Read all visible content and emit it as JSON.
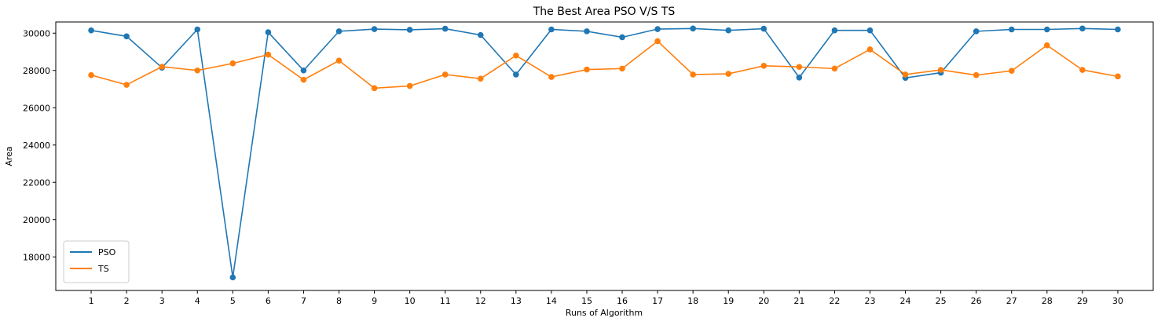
{
  "chart_data": {
    "type": "line",
    "title": "The Best Area PSO V/S TS",
    "xlabel": "Runs of Algorithm",
    "ylabel": "Area",
    "x": [
      1,
      2,
      3,
      4,
      5,
      6,
      7,
      8,
      9,
      10,
      11,
      12,
      13,
      14,
      15,
      16,
      17,
      18,
      19,
      20,
      21,
      22,
      23,
      24,
      25,
      26,
      27,
      28,
      29,
      30
    ],
    "xlim": [
      0,
      31
    ],
    "ylim": [
      16200,
      30600
    ],
    "yticks": [
      18000,
      20000,
      22000,
      24000,
      26000,
      28000,
      30000
    ],
    "grid": false,
    "legend_position": "lower-left",
    "series": [
      {
        "name": "PSO",
        "color": "#1f77b4",
        "values": [
          30150,
          29830,
          28150,
          30200,
          16900,
          30050,
          28000,
          30100,
          30220,
          30180,
          30240,
          29900,
          27780,
          30200,
          30100,
          29780,
          30220,
          30250,
          30150,
          30240,
          27620,
          30150,
          30150,
          27600,
          27880,
          30100,
          30200,
          30200,
          30250,
          30200
        ]
      },
      {
        "name": "TS",
        "color": "#ff7f0e",
        "values": [
          27750,
          27230,
          28200,
          28000,
          28380,
          28850,
          27500,
          28530,
          27050,
          27170,
          27780,
          27560,
          28800,
          27650,
          28050,
          28100,
          29570,
          27780,
          27820,
          28250,
          28190,
          28100,
          29130,
          27780,
          28030,
          27750,
          27980,
          29350,
          28030,
          27680
        ]
      }
    ]
  }
}
